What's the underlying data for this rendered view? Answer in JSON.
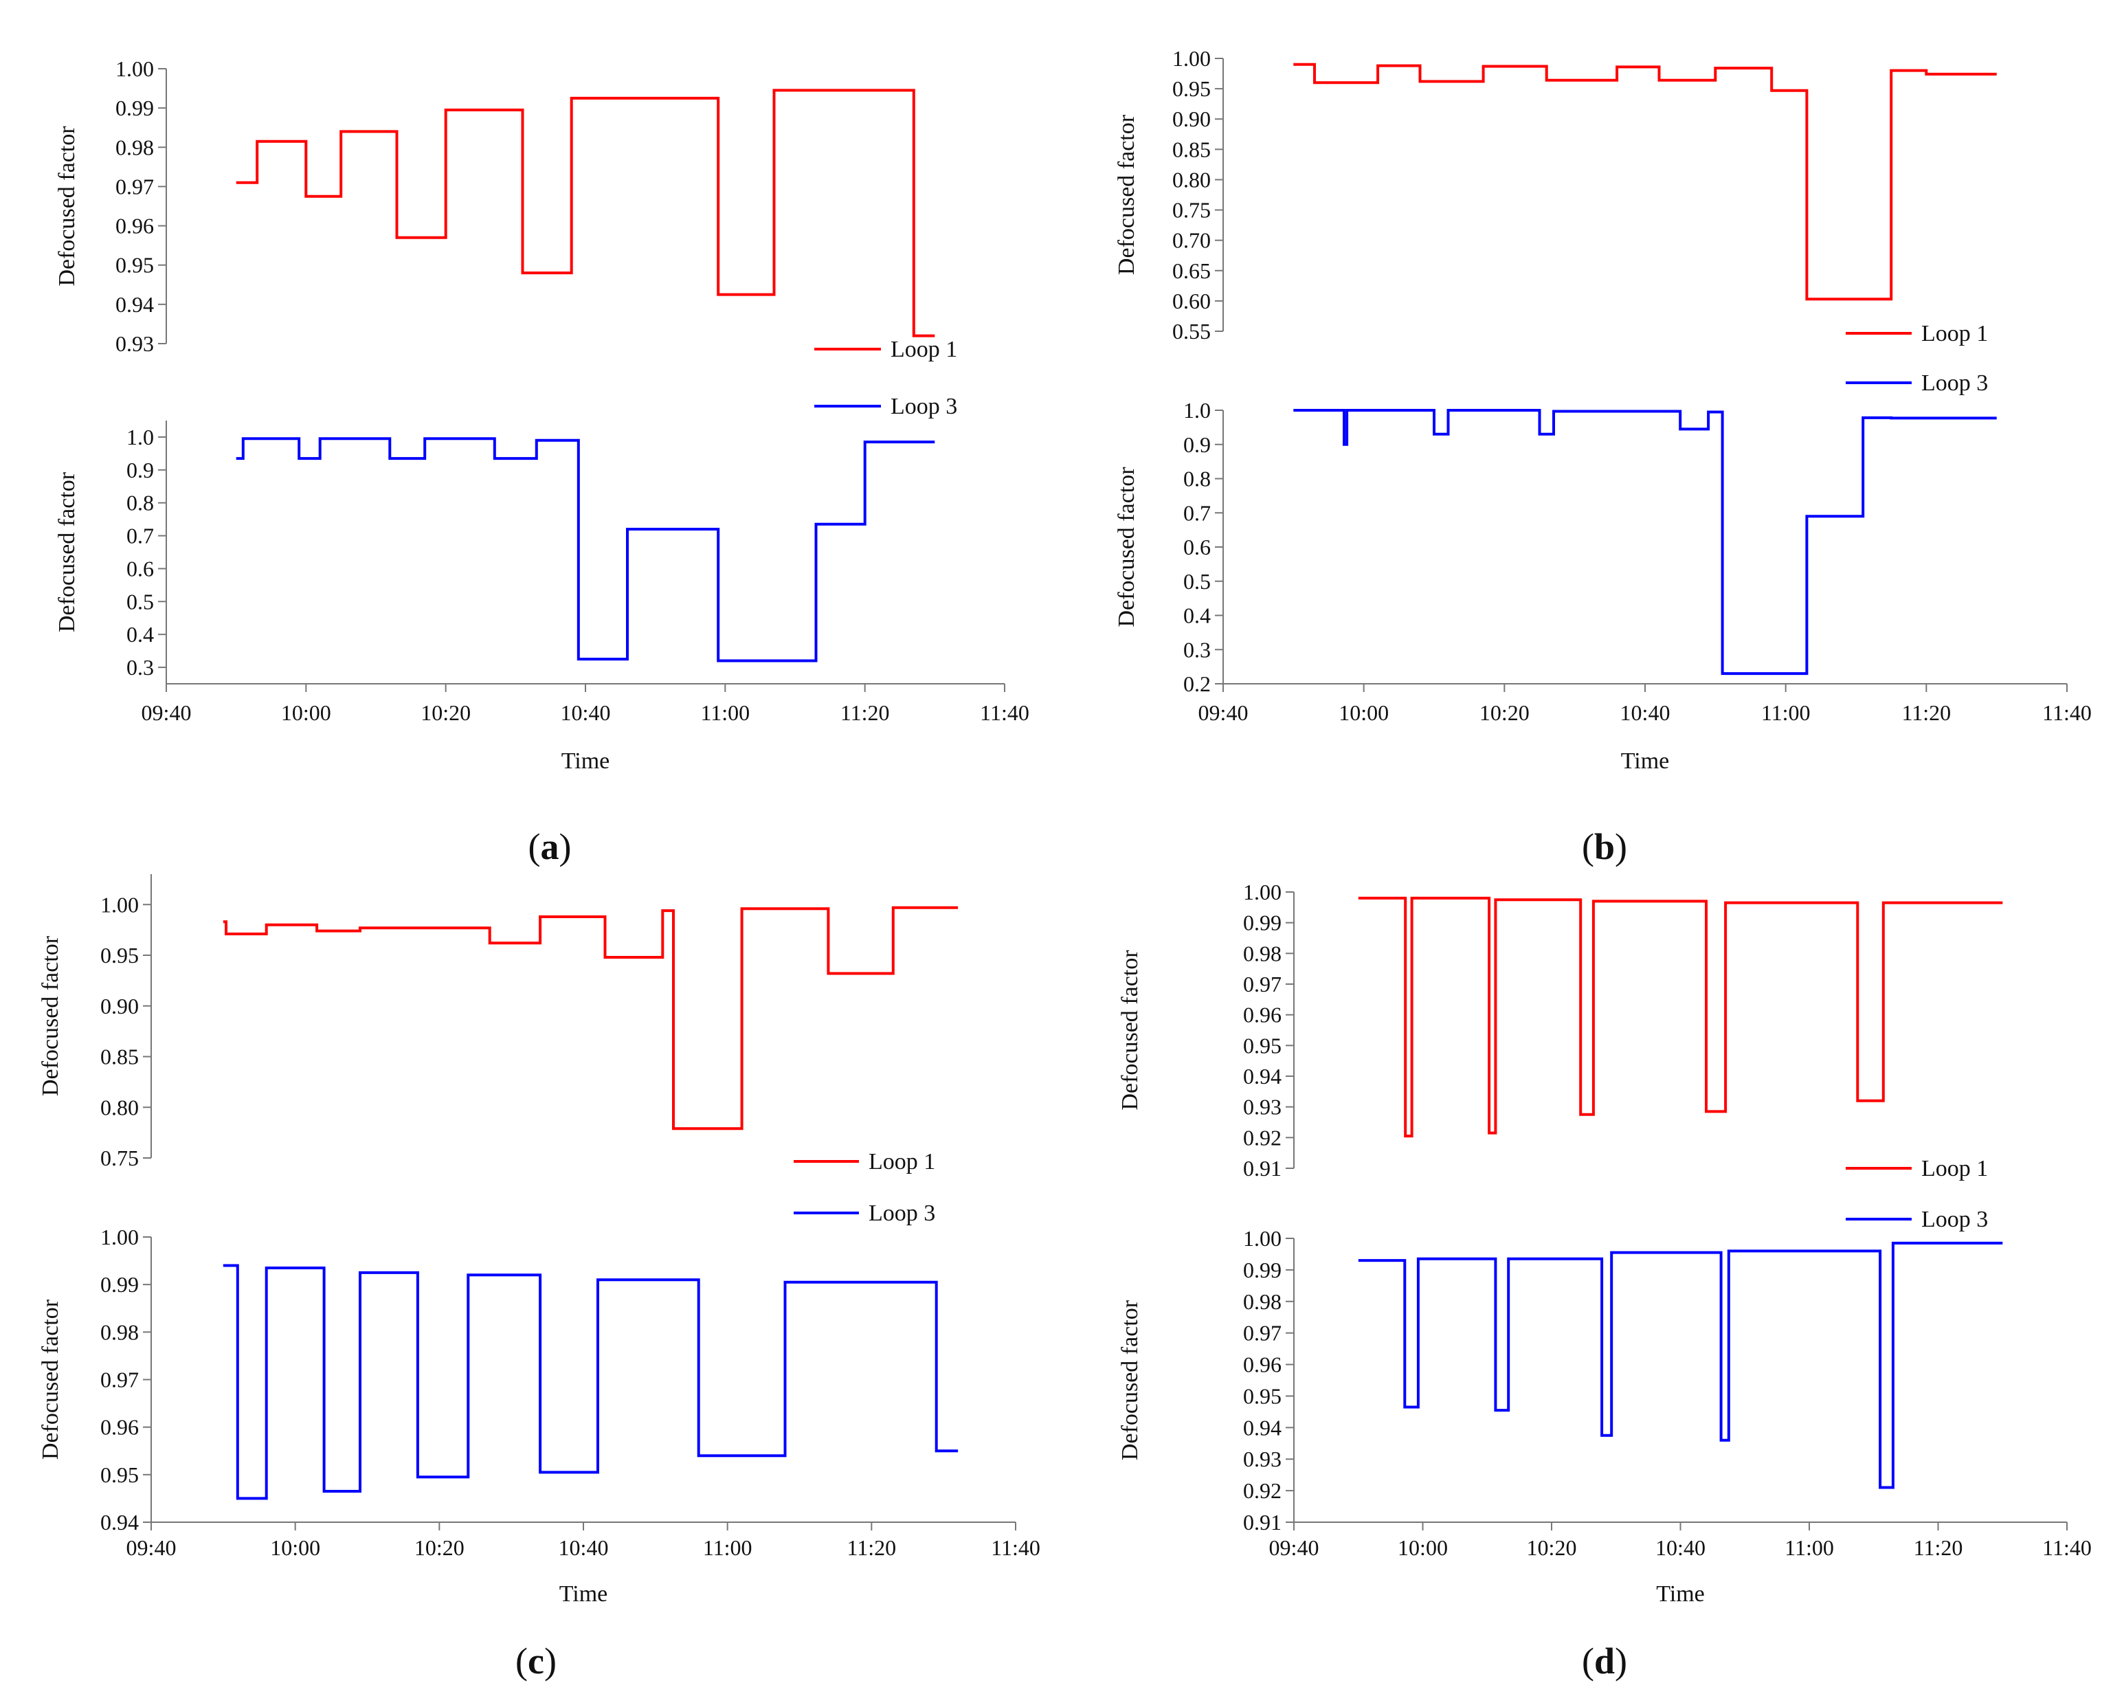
{
  "legend": {
    "loop1": "Loop 1",
    "loop3": "Loop 3"
  },
  "colors": {
    "loop1": "#ff0000",
    "loop3": "#0000ff"
  },
  "chart_data": [
    {
      "panel": "a",
      "type": "line",
      "title": "",
      "shared_x": {
        "xlabel": "Time",
        "xlim": [
          0,
          120
        ],
        "xticks": [
          0,
          20,
          40,
          60,
          80,
          100,
          120
        ],
        "xtick_labels": [
          "09:40",
          "10:00",
          "10:20",
          "10:40",
          "11:00",
          "11:20",
          "11:40"
        ]
      },
      "series": [
        {
          "name": "Loop 1",
          "ylabel": "Defocused factor",
          "ylim": [
            0.93,
            1.0
          ],
          "yticks": [
            0.93,
            0.94,
            0.95,
            0.96,
            0.97,
            0.98,
            0.99,
            1.0
          ],
          "ytick_labels": [
            "0.93",
            "0.94",
            "0.95",
            "0.96",
            "0.97",
            "0.98",
            "0.99",
            "1.00"
          ],
          "x": [
            10,
            13,
            20,
            25,
            33,
            40,
            51,
            58,
            79,
            87,
            107
          ],
          "values": [
            0.971,
            0.9815,
            0.9675,
            0.984,
            0.957,
            0.9895,
            0.948,
            0.9925,
            0.9425,
            0.9945,
            0.932
          ],
          "x_end": 110
        },
        {
          "name": "Loop 3",
          "ylabel": "Defocused factor",
          "ylim": [
            0.25,
            1.05
          ],
          "yticks": [
            0.3,
            0.4,
            0.5,
            0.6,
            0.7,
            0.8,
            0.9,
            1.0
          ],
          "ytick_labels": [
            "0.3",
            "0.4",
            "0.5",
            "0.6",
            "0.7",
            "0.8",
            "0.9",
            "1.0"
          ],
          "x": [
            10,
            11,
            19,
            22,
            32,
            37,
            47,
            53,
            59,
            66,
            79,
            93,
            100
          ],
          "values": [
            0.935,
            0.995,
            0.935,
            0.995,
            0.935,
            0.995,
            0.935,
            0.99,
            0.325,
            0.72,
            0.32,
            0.735,
            0.985
          ],
          "x_end": 110
        }
      ]
    },
    {
      "panel": "b",
      "type": "line",
      "title": "",
      "shared_x": {
        "xlabel": "Time",
        "xlim": [
          0,
          120
        ],
        "xticks": [
          0,
          20,
          40,
          60,
          80,
          100,
          120
        ],
        "xtick_labels": [
          "09:40",
          "10:00",
          "10:20",
          "10:40",
          "11:00",
          "11:20",
          "11:40"
        ]
      },
      "series": [
        {
          "name": "Loop 1",
          "ylabel": "Defocused factor",
          "ylim": [
            0.55,
            1.0
          ],
          "yticks": [
            0.55,
            0.6,
            0.65,
            0.7,
            0.75,
            0.8,
            0.85,
            0.9,
            0.95,
            1.0
          ],
          "ytick_labels": [
            "0.55",
            "0.60",
            "0.65",
            "0.70",
            "0.75",
            "0.80",
            "0.85",
            "0.90",
            "0.95",
            "1.00"
          ],
          "x": [
            10,
            13,
            22,
            28,
            37,
            46,
            56,
            62,
            70,
            78,
            83,
            95,
            100
          ],
          "values": [
            0.99,
            0.96,
            0.988,
            0.962,
            0.987,
            0.964,
            0.986,
            0.964,
            0.984,
            0.947,
            0.603,
            0.98,
            0.974
          ],
          "x_end": 110
        },
        {
          "name": "Loop 3",
          "ylabel": "Defocused factor",
          "ylim": [
            0.2,
            1.0
          ],
          "yticks": [
            0.2,
            0.3,
            0.4,
            0.5,
            0.6,
            0.7,
            0.8,
            0.9,
            1.0
          ],
          "ytick_labels": [
            "0.2",
            "0.3",
            "0.4",
            "0.5",
            "0.6",
            "0.7",
            "0.8",
            "0.9",
            "1.0"
          ],
          "x": [
            10,
            17.2,
            17.6,
            30,
            32,
            45,
            47,
            65,
            69,
            71,
            83,
            91,
            95
          ],
          "values": [
            1.0,
            0.9,
            1.0,
            0.93,
            1.0,
            0.93,
            0.997,
            0.945,
            0.995,
            0.23,
            0.69,
            0.978,
            0.977
          ],
          "x_end": 110
        }
      ]
    },
    {
      "panel": "c",
      "type": "line",
      "title": "",
      "shared_x": {
        "xlabel": "Time",
        "xlim": [
          0,
          120
        ],
        "xticks": [
          0,
          20,
          40,
          60,
          80,
          100,
          120
        ],
        "xtick_labels": [
          "09:40",
          "10:00",
          "10:20",
          "10:40",
          "11:00",
          "11:20",
          "11:40"
        ]
      },
      "series": [
        {
          "name": "Loop 1",
          "ylabel": "Defocused factor",
          "ylim": [
            0.75,
            1.03
          ],
          "yticks": [
            0.75,
            0.8,
            0.85,
            0.9,
            0.95,
            1.0
          ],
          "ytick_labels": [
            "0.75",
            "0.80",
            "0.85",
            "0.90",
            "0.95",
            "1.00"
          ],
          "x": [
            10,
            10.4,
            16,
            23,
            29,
            47,
            54,
            63,
            71,
            72.5,
            82,
            94,
            103
          ],
          "values": [
            0.983,
            0.971,
            0.98,
            0.974,
            0.977,
            0.962,
            0.988,
            0.948,
            0.994,
            0.779,
            0.996,
            0.932,
            0.997
          ],
          "x_end": 112
        },
        {
          "name": "Loop 3",
          "ylabel": "Defocused factor",
          "ylim": [
            0.94,
            1.0
          ],
          "yticks": [
            0.94,
            0.95,
            0.96,
            0.97,
            0.98,
            0.99,
            1.0
          ],
          "ytick_labels": [
            "0.94",
            "0.95",
            "0.96",
            "0.97",
            "0.98",
            "0.99",
            "1.00"
          ],
          "x": [
            10,
            12,
            16,
            24,
            29,
            37,
            44,
            54,
            62,
            76,
            88,
            109
          ],
          "values": [
            0.994,
            0.945,
            0.9935,
            0.9465,
            0.9925,
            0.9495,
            0.992,
            0.9505,
            0.991,
            0.954,
            0.9905,
            0.955
          ],
          "x_end": 112
        }
      ]
    },
    {
      "panel": "d",
      "type": "line",
      "title": "",
      "shared_x": {
        "xlabel": "Time",
        "xlim": [
          0,
          120
        ],
        "xticks": [
          0,
          20,
          40,
          60,
          80,
          100,
          120
        ],
        "xtick_labels": [
          "09:40",
          "10:00",
          "10:20",
          "10:40",
          "11:00",
          "11:20",
          "11:40"
        ]
      },
      "series": [
        {
          "name": "Loop 1",
          "ylabel": "Defocused factor",
          "ylim": [
            0.91,
            1.0
          ],
          "yticks": [
            0.91,
            0.92,
            0.93,
            0.94,
            0.95,
            0.96,
            0.97,
            0.98,
            0.99,
            1.0
          ],
          "ytick_labels": [
            "0.91",
            "0.92",
            "0.93",
            "0.94",
            "0.95",
            "0.96",
            "0.97",
            "0.98",
            "0.99",
            "1.00"
          ],
          "x": [
            10,
            17.3,
            18.3,
            30.3,
            31.3,
            44.5,
            46.5,
            64,
            67,
            87.5,
            91.5
          ],
          "values": [
            0.998,
            0.9205,
            0.998,
            0.9215,
            0.9975,
            0.9275,
            0.997,
            0.9285,
            0.9965,
            0.932,
            0.9965
          ],
          "x_end": 110
        },
        {
          "name": "Loop 3",
          "ylabel": "Defocused factor",
          "ylim": [
            0.91,
            1.0
          ],
          "yticks": [
            0.91,
            0.92,
            0.93,
            0.94,
            0.95,
            0.96,
            0.97,
            0.98,
            0.99,
            1.0
          ],
          "ytick_labels": [
            "0.91",
            "0.92",
            "0.93",
            "0.94",
            "0.95",
            "0.96",
            "0.97",
            "0.98",
            "0.99",
            "1.00"
          ],
          "x": [
            10,
            17.2,
            19.3,
            31.3,
            33.3,
            47.8,
            49.3,
            66.3,
            67.5,
            91,
            93,
            109
          ],
          "values": [
            0.993,
            0.9465,
            0.9935,
            0.9455,
            0.9935,
            0.9375,
            0.9955,
            0.936,
            0.996,
            0.921,
            0.9985,
            0.9985
          ],
          "x_end": 110
        }
      ]
    }
  ]
}
